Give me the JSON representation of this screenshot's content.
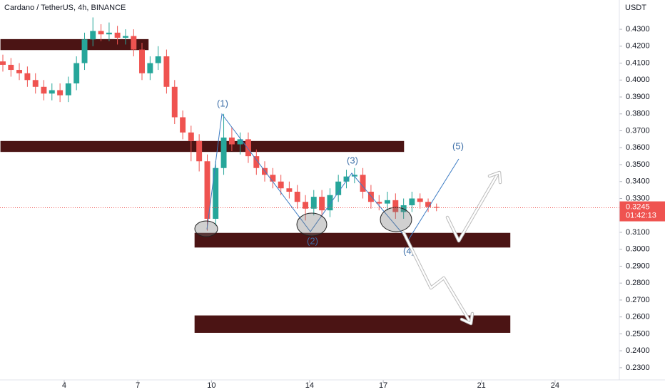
{
  "chart_data": {
    "type": "candlestick",
    "title": "Cardano / TetherUS, 4h, BINANCE",
    "y_axis_label": "USDT",
    "last_price": 0.3245,
    "countdown": "01:42:13",
    "wave_labels": [
      "(1)",
      "(2)",
      "(3)",
      "(4)",
      "(5)"
    ],
    "up_color": "#26a69a",
    "down_color": "#ef5350",
    "grid": false,
    "x": [
      1.5,
      1.83,
      2.17,
      2.5,
      2.83,
      3.17,
      3.5,
      3.83,
      4.17,
      4.5,
      4.83,
      5.17,
      5.5,
      5.83,
      6.17,
      6.5,
      6.83,
      7.17,
      7.5,
      7.83,
      8.17,
      8.5,
      8.83,
      9.17,
      9.5,
      9.83,
      10.17,
      10.5,
      10.83,
      11.17,
      11.5,
      11.83,
      12.17,
      12.5,
      12.83,
      13.17,
      13.5,
      13.83,
      14.17,
      14.5,
      14.83,
      15.17,
      15.5,
      15.83,
      16.17,
      16.5,
      16.83,
      17.17,
      17.5,
      17.83,
      18.17,
      18.5,
      18.83,
      19.17
    ],
    "open": [
      0.411,
      0.409,
      0.406,
      0.404,
      0.4,
      0.396,
      0.392,
      0.394,
      0.391,
      0.398,
      0.41,
      0.424,
      0.429,
      0.427,
      0.428,
      0.425,
      0.426,
      0.418,
      0.404,
      0.41,
      0.414,
      0.396,
      0.378,
      0.369,
      0.364,
      0.352,
      0.318,
      0.348,
      0.366,
      0.362,
      0.365,
      0.355,
      0.348,
      0.344,
      0.34,
      0.336,
      0.334,
      0.328,
      0.324,
      0.331,
      0.323,
      0.332,
      0.34,
      0.343,
      0.344,
      0.334,
      0.328,
      0.327,
      0.329,
      0.322,
      0.326,
      0.33,
      0.328,
      0.325
    ],
    "high": [
      0.415,
      0.413,
      0.41,
      0.408,
      0.404,
      0.4,
      0.398,
      0.398,
      0.402,
      0.414,
      0.428,
      0.437,
      0.433,
      0.434,
      0.432,
      0.43,
      0.43,
      0.422,
      0.414,
      0.42,
      0.418,
      0.4,
      0.382,
      0.373,
      0.368,
      0.356,
      0.352,
      0.38,
      0.372,
      0.369,
      0.369,
      0.359,
      0.352,
      0.348,
      0.344,
      0.34,
      0.338,
      0.332,
      0.335,
      0.335,
      0.336,
      0.344,
      0.347,
      0.348,
      0.348,
      0.338,
      0.332,
      0.334,
      0.333,
      0.33,
      0.334,
      0.333,
      0.33,
      0.327
    ],
    "low": [
      0.405,
      0.402,
      0.4,
      0.396,
      0.392,
      0.388,
      0.388,
      0.387,
      0.387,
      0.394,
      0.406,
      0.42,
      0.423,
      0.423,
      0.421,
      0.421,
      0.414,
      0.4,
      0.4,
      0.406,
      0.392,
      0.374,
      0.365,
      0.352,
      0.346,
      0.311,
      0.314,
      0.344,
      0.358,
      0.356,
      0.351,
      0.344,
      0.34,
      0.336,
      0.332,
      0.33,
      0.324,
      0.317,
      0.32,
      0.319,
      0.319,
      0.328,
      0.336,
      0.339,
      0.33,
      0.324,
      0.323,
      0.323,
      0.318,
      0.318,
      0.322,
      0.324,
      0.322,
      0.3225
    ],
    "close": [
      0.409,
      0.406,
      0.404,
      0.4,
      0.396,
      0.392,
      0.394,
      0.391,
      0.398,
      0.41,
      0.424,
      0.429,
      0.427,
      0.428,
      0.425,
      0.426,
      0.418,
      0.404,
      0.41,
      0.414,
      0.396,
      0.378,
      0.369,
      0.364,
      0.352,
      0.318,
      0.348,
      0.366,
      0.362,
      0.365,
      0.355,
      0.348,
      0.344,
      0.34,
      0.336,
      0.334,
      0.328,
      0.324,
      0.331,
      0.323,
      0.332,
      0.34,
      0.343,
      0.344,
      0.334,
      0.328,
      0.327,
      0.329,
      0.322,
      0.326,
      0.33,
      0.328,
      0.325,
      0.3245
    ],
    "zones": [
      {
        "x": [
          1.38,
          7.46
        ],
        "y": [
          0.4174,
          0.4245
        ]
      },
      {
        "x": [
          1.38,
          17.87
        ],
        "y": [
          0.3572,
          0.3643
        ]
      },
      {
        "x": [
          9.29,
          22.2
        ],
        "y": [
          0.3007,
          0.31
        ]
      },
      {
        "x": [
          9.29,
          22.2
        ],
        "y": [
          0.2503,
          0.2612
        ]
      }
    ],
    "xlim": [
      1.384,
      26.62
    ],
    "xticks": [
      4,
      7,
      10,
      14,
      17,
      21,
      24
    ],
    "ylim": [
      0.2228,
      0.4473
    ],
    "yticks": [
      {
        "value": 0.23,
        "label": "0.2300"
      },
      {
        "value": 0.24,
        "label": "0.2400"
      },
      {
        "value": 0.25,
        "label": "0.2500"
      },
      {
        "value": 0.26,
        "label": "0.2600"
      },
      {
        "value": 0.27,
        "label": "0.2700"
      },
      {
        "value": 0.28,
        "label": "0.2800"
      },
      {
        "value": 0.29,
        "label": "0.2900"
      },
      {
        "value": 0.3,
        "label": "0.3000"
      },
      {
        "value": 0.31,
        "label": "0.3100"
      },
      {
        "value": 0.33,
        "label": "0.3300"
      },
      {
        "value": 0.34,
        "label": "0.3400"
      },
      {
        "value": 0.35,
        "label": "0.3500"
      },
      {
        "value": 0.36,
        "label": "0.3600"
      },
      {
        "value": 0.37,
        "label": "0.3700"
      },
      {
        "value": 0.38,
        "label": "0.3800"
      },
      {
        "value": 0.39,
        "label": "0.3900"
      },
      {
        "value": 0.4,
        "label": "0.4000"
      },
      {
        "value": 0.41,
        "label": "0.4100"
      },
      {
        "value": 0.42,
        "label": "0.4200"
      },
      {
        "value": 0.43,
        "label": "0.4300"
      }
    ]
  }
}
